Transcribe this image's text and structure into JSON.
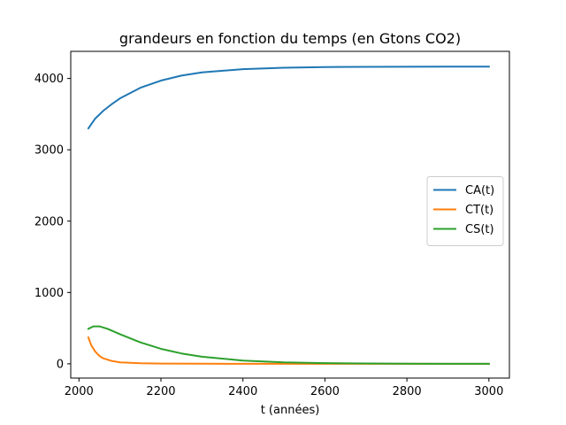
{
  "chart_data": {
    "type": "line",
    "title": "grandeurs en fonction du temps (en Gtons CO2)",
    "xlabel": "t (années)",
    "ylabel": "",
    "xlim": [
      1980,
      3050
    ],
    "ylim": [
      -200,
      4380
    ],
    "xticks": [
      2000,
      2200,
      2400,
      2600,
      2800,
      3000
    ],
    "yticks": [
      0,
      1000,
      2000,
      3000,
      4000
    ],
    "grid": false,
    "legend_position": "center-right",
    "series": [
      {
        "name": "CA(t)",
        "color": "#1f77b4",
        "x": [
          2023,
          2040,
          2060,
          2080,
          2100,
          2150,
          2200,
          2250,
          2300,
          2400,
          2500,
          2600,
          2700,
          2800,
          2900,
          3000
        ],
        "y": [
          3300,
          3440,
          3550,
          3640,
          3720,
          3870,
          3970,
          4040,
          4085,
          4130,
          4150,
          4160,
          4163,
          4165,
          4166,
          4166
        ]
      },
      {
        "name": "CT(t)",
        "color": "#ff7f0e",
        "x": [
          2023,
          2030,
          2040,
          2050,
          2060,
          2080,
          2100,
          2150,
          2200,
          2300,
          2500,
          3000
        ],
        "y": [
          370,
          260,
          170,
          110,
          75,
          40,
          20,
          8,
          3,
          1,
          0,
          0
        ]
      },
      {
        "name": "CS(t)",
        "color": "#2ca02c",
        "x": [
          2023,
          2035,
          2050,
          2070,
          2100,
          2150,
          2200,
          2250,
          2300,
          2400,
          2500,
          2600,
          2700,
          2800,
          3000
        ],
        "y": [
          490,
          525,
          525,
          490,
          415,
          300,
          210,
          145,
          100,
          45,
          20,
          10,
          5,
          2,
          0
        ]
      }
    ]
  }
}
